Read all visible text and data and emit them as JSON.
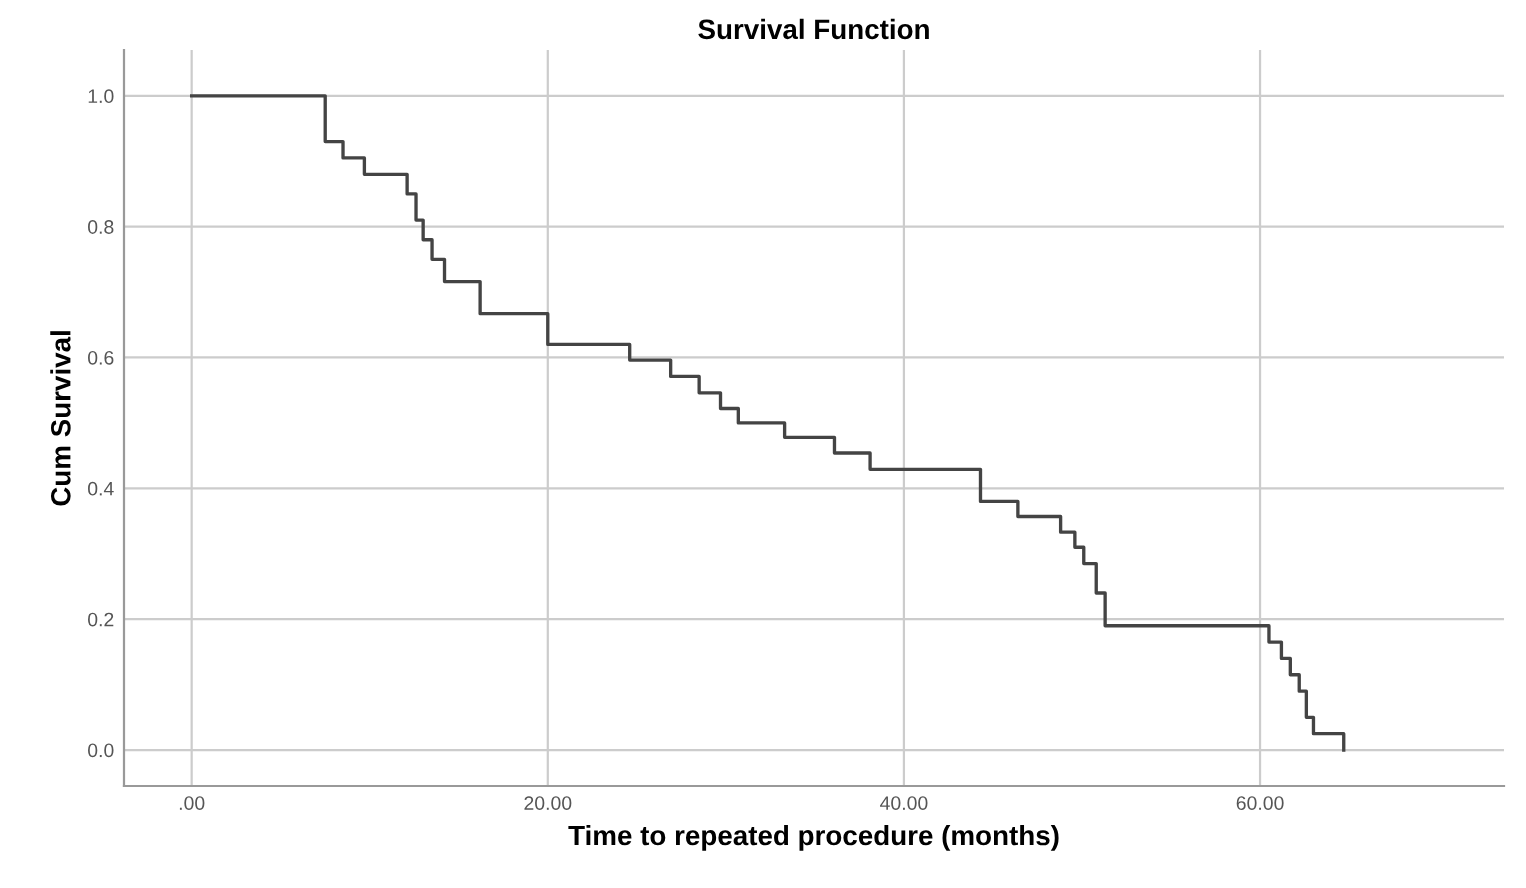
{
  "chart_data": {
    "type": "step",
    "title": "Survival Function",
    "xlabel": "Time to repeated procedure (months)",
    "ylabel": "Cum Survival",
    "series": [
      {
        "color": "#444444",
        "x": [
          0,
          7.5,
          8.5,
          9.7,
          12.1,
          12.6,
          13.0,
          13.5,
          14.2,
          16.2,
          20.0,
          24.6,
          26.9,
          28.5,
          29.7,
          30.7,
          33.3,
          36.1,
          38.1,
          44.3,
          46.4,
          48.8,
          49.6,
          50.1,
          50.8,
          51.3,
          60.5,
          61.2,
          61.7,
          62.2,
          62.6,
          63.0,
          64.7
        ],
        "values": [
          1.0,
          0.93,
          0.905,
          0.88,
          0.85,
          0.81,
          0.78,
          0.75,
          0.716,
          0.667,
          0.62,
          0.596,
          0.571,
          0.546,
          0.522,
          0.5,
          0.478,
          0.454,
          0.429,
          0.38,
          0.357,
          0.333,
          0.31,
          0.285,
          0.24,
          0.19,
          0.165,
          0.14,
          0.115,
          0.09,
          0.05,
          0.025,
          0.0
        ]
      }
    ],
    "xlim": [
      -3.8,
      73.7
    ],
    "ylim": [
      -0.055,
      1.07
    ],
    "xticks": [
      {
        "value": 0,
        "label": ".00"
      },
      {
        "value": 20,
        "label": "20.00"
      },
      {
        "value": 40,
        "label": "40.00"
      },
      {
        "value": 60,
        "label": "60.00"
      }
    ],
    "yticks": [
      {
        "value": 0,
        "label": "0.0"
      },
      {
        "value": 0.2,
        "label": "0.2"
      },
      {
        "value": 0.4,
        "label": "0.4"
      },
      {
        "value": 0.6,
        "label": "0.6"
      },
      {
        "value": 0.8,
        "label": "0.8"
      },
      {
        "value": 1.0,
        "label": "1.0"
      }
    ],
    "grid": true
  }
}
